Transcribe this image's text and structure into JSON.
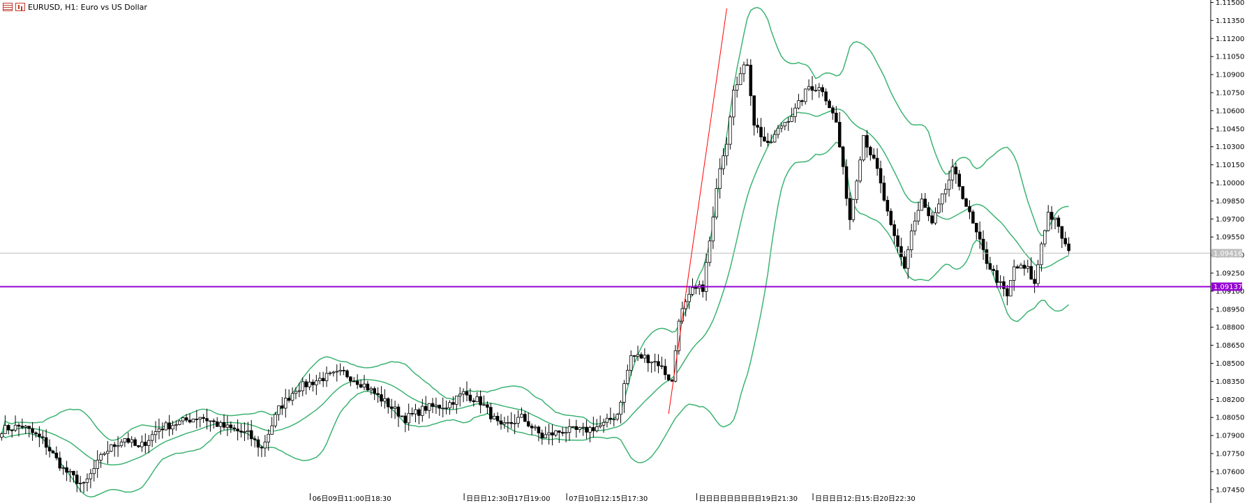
{
  "header": {
    "symbol_info": "EURUSD, H1:  Euro vs US Dollar",
    "icons": [
      "list-icon",
      "chart-icon"
    ]
  },
  "colors": {
    "background": "#ffffff",
    "candle_bull_fill": "#ffffff",
    "candle_bear_fill": "#000000",
    "candle_outline": "#000000",
    "bollinger": "#3cb371",
    "support_line": "#9400d3",
    "bid_line": "#c0c0c0",
    "trend_line": "#ff0000"
  },
  "chart_data": {
    "type": "candlestick",
    "symbol": "EURUSD",
    "timeframe": "H1",
    "grid": false,
    "y_ticks": [
      1.115,
      1.1135,
      1.112,
      1.1105,
      1.109,
      1.1075,
      1.106,
      1.1045,
      1.103,
      1.1015,
      1.1,
      1.0985,
      1.097,
      1.0955,
      1.094,
      1.0925,
      1.091,
      1.0895,
      1.088,
      1.0865,
      1.085,
      1.0835,
      1.082,
      1.0805,
      1.079,
      1.0775,
      1.076,
      1.0745
    ],
    "y_tick_labels": [
      "1.11500",
      "1.11350",
      "1.11200",
      "1.11050",
      "1.10900",
      "1.10750",
      "1.10600",
      "1.10450",
      "1.10300",
      "1.10150",
      "1.10000",
      "1.09850",
      "1.09700",
      "1.09550",
      "1.09400",
      "1.09250",
      "1.09100",
      "1.08950",
      "1.08800",
      "1.08650",
      "1.08500",
      "1.08350",
      "1.08200",
      "1.08050",
      "1.07900",
      "1.07750",
      "1.07600",
      "1.07450"
    ],
    "ylim": [
      1.0742,
      1.1152
    ],
    "x_tick_labels": [
      {
        "label": "06日09日11:00日18:30",
        "bar": 100
      },
      {
        "label": "日日日12:30日17日19:00",
        "bar": 145
      },
      {
        "label": "07日10日12:15日17:30",
        "bar": 175
      },
      {
        "label": "日日日日日日日日日19日21:30",
        "bar": 213
      },
      {
        "label": "日日日日12:日15:日20日22:30",
        "bar": 247
      }
    ],
    "current_price": {
      "value": 1.09416,
      "label": "1.09416"
    },
    "horizontal_line": {
      "value": 1.09137,
      "label": "1.09137"
    },
    "trend_line": {
      "from": {
        "bar": 195,
        "price": 1.0808
      },
      "to": {
        "bar": 212,
        "price": 1.1145
      }
    },
    "anchors": [
      [
        0,
        1.0795
      ],
      [
        6,
        1.0798
      ],
      [
        12,
        1.0786
      ],
      [
        18,
        1.0762
      ],
      [
        24,
        1.0748
      ],
      [
        30,
        1.0776
      ],
      [
        36,
        1.0788
      ],
      [
        40,
        1.0779
      ],
      [
        46,
        1.0796
      ],
      [
        52,
        1.0801
      ],
      [
        58,
        1.0806
      ],
      [
        64,
        1.0798
      ],
      [
        72,
        1.0791
      ],
      [
        76,
        1.0779
      ],
      [
        81,
        1.0812
      ],
      [
        86,
        1.0829
      ],
      [
        94,
        1.0838
      ],
      [
        100,
        1.0842
      ],
      [
        106,
        1.0832
      ],
      [
        112,
        1.0818
      ],
      [
        118,
        1.0804
      ],
      [
        124,
        1.0813
      ],
      [
        130,
        1.0815
      ],
      [
        135,
        1.0825
      ],
      [
        140,
        1.0818
      ],
      [
        146,
        1.0796
      ],
      [
        152,
        1.0805
      ],
      [
        158,
        1.0789
      ],
      [
        164,
        1.0794
      ],
      [
        170,
        1.0794
      ],
      [
        176,
        1.0799
      ],
      [
        180,
        1.0808
      ],
      [
        184,
        1.0856
      ],
      [
        188,
        1.0855
      ],
      [
        192,
        1.085
      ],
      [
        196,
        1.0834
      ],
      [
        198,
        1.0888
      ],
      [
        202,
        1.091
      ],
      [
        205,
        1.0913
      ],
      [
        208,
        1.097
      ],
      [
        210,
        1.1015
      ],
      [
        212,
        1.1035
      ],
      [
        214,
        1.108
      ],
      [
        216,
        1.109
      ],
      [
        218,
        1.11
      ],
      [
        220,
        1.105
      ],
      [
        224,
        1.103
      ],
      [
        228,
        1.1048
      ],
      [
        232,
        1.106
      ],
      [
        236,
        1.108
      ],
      [
        240,
        1.1078
      ],
      [
        244,
        1.105
      ],
      [
        248,
        1.097
      ],
      [
        252,
        1.104
      ],
      [
        256,
        1.101
      ],
      [
        260,
        1.0962
      ],
      [
        264,
        1.093
      ],
      [
        266,
        1.096
      ],
      [
        269,
        1.0985
      ],
      [
        272,
        1.0965
      ],
      [
        276,
        1.0995
      ],
      [
        278,
        1.101
      ],
      [
        280,
        1.0998
      ],
      [
        284,
        1.0965
      ],
      [
        288,
        1.0935
      ],
      [
        292,
        1.0915
      ],
      [
        294,
        1.0905
      ],
      [
        296,
        1.093
      ],
      [
        300,
        1.0928
      ],
      [
        302,
        1.0915
      ],
      [
        304,
        1.095
      ],
      [
        306,
        1.0975
      ],
      [
        308,
        1.0968
      ],
      [
        310,
        1.0955
      ],
      [
        312,
        1.0941
      ]
    ],
    "bollinger_period": 20,
    "bollinger_deviation": 2
  }
}
